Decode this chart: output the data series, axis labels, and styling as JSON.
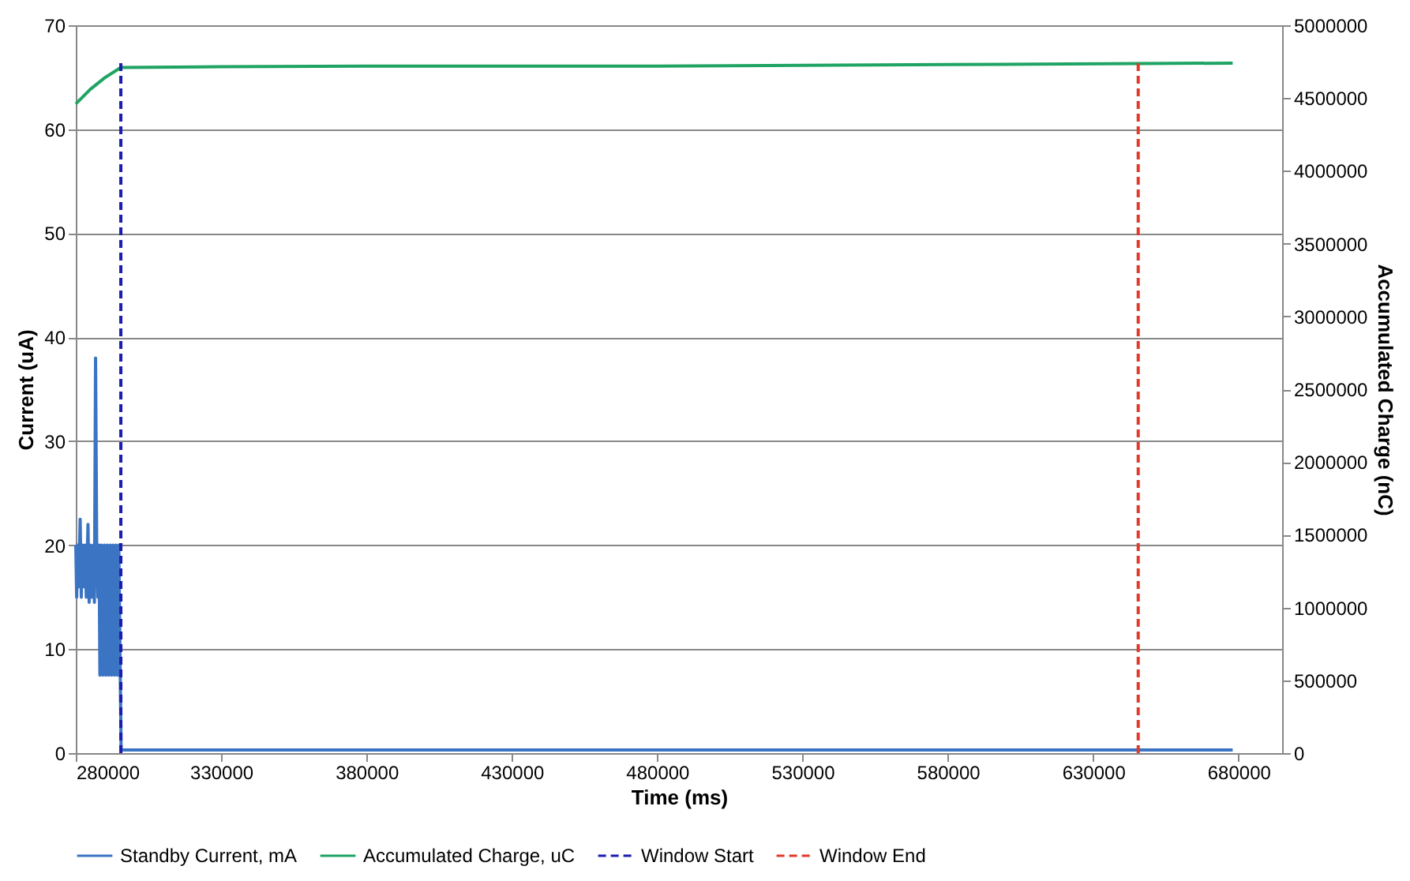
{
  "chart_data": {
    "type": "line",
    "xlabel": "Time (ms)",
    "ylabel": "Current (uA)",
    "y2label": "Accumulated Charge (nC)",
    "xlim": [
      280000,
      695000
    ],
    "xticks": [
      280000,
      330000,
      380000,
      430000,
      480000,
      530000,
      580000,
      630000,
      680000
    ],
    "ylim": [
      0,
      70
    ],
    "yticks": [
      0,
      10,
      20,
      30,
      40,
      50,
      60,
      70
    ],
    "y2lim": [
      0,
      5000000
    ],
    "y2ticks": [
      0,
      500000,
      1000000,
      1500000,
      2000000,
      2500000,
      3000000,
      3500000,
      4000000,
      4500000,
      5000000
    ],
    "grid": "y",
    "legend": "bottom",
    "marker": "none",
    "series": [
      {
        "name": "Standby Current, mA",
        "color": "#3a74c2",
        "line_style": "solid",
        "x": [
          280000,
          280300,
          280700,
          281000,
          281500,
          281900,
          282300,
          282700,
          283200,
          283600,
          284200,
          284600,
          285000,
          285500,
          286000,
          286400,
          286800,
          287200,
          287600,
          288000,
          288300,
          288800,
          289300,
          289800,
          290300,
          290800,
          291300,
          291800,
          292300,
          292800,
          293300,
          293800,
          294300,
          294800,
          295300,
          295600,
          400000,
          550000,
          678000
        ],
        "values": [
          20,
          15,
          20,
          16,
          22.5,
          15,
          20,
          16,
          20,
          15,
          22,
          14.5,
          20,
          15,
          20,
          14.5,
          38,
          20,
          15,
          20,
          7.5,
          20,
          7.5,
          20,
          7.5,
          20,
          7.5,
          20,
          7.5,
          20,
          7.5,
          20,
          7.5,
          20,
          7.5,
          0.3,
          0.3,
          0.3,
          0.3
        ]
      },
      {
        "name": "Accumulated Charge, uC",
        "color": "#1fa463",
        "line_style": "solid",
        "axis": "y2",
        "x": [
          280000,
          285000,
          290000,
          295500,
          330000,
          380000,
          480000,
          580000,
          678000
        ],
        "values": [
          4460000,
          4560000,
          4640000,
          4710000,
          4715000,
          4720000,
          4720000,
          4730000,
          4740000
        ]
      },
      {
        "name": "Window Start",
        "color": "#1c1cb0",
        "line_style": "dashed",
        "x": [
          295500,
          295500
        ],
        "values": [
          0,
          66.5
        ]
      },
      {
        "name": "Window End",
        "color": "#e03a2a",
        "line_style": "dashed",
        "x": [
          645500,
          645500
        ],
        "values": [
          0,
          66.5
        ]
      }
    ]
  }
}
